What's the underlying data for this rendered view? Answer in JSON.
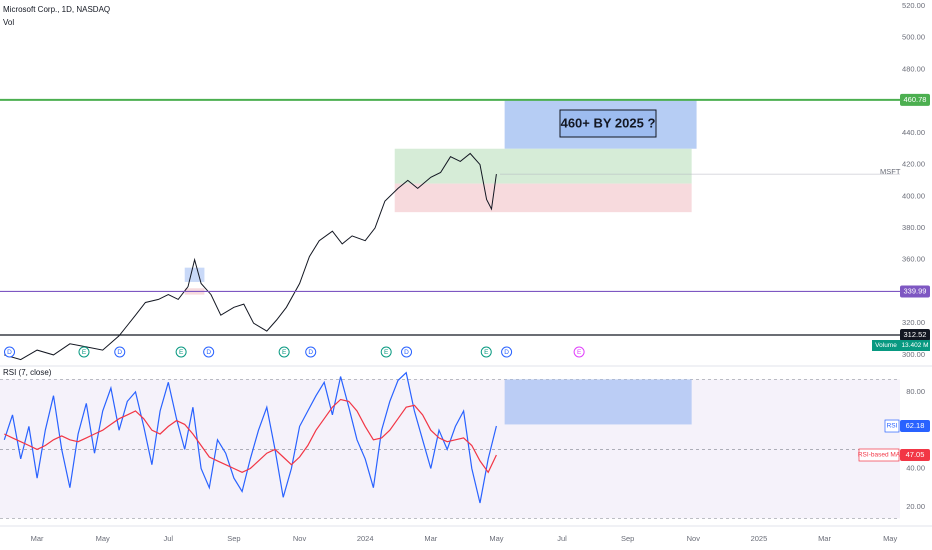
{
  "header": {
    "title": "Microsoft Corp., 1D, NASDAQ",
    "volume_label": "Vol"
  },
  "chart_data": [
    {
      "type": "line",
      "series": [
        {
          "name": "MSFT",
          "color": "#131722",
          "x": [
            1,
            1.5,
            2,
            2.5,
            3,
            3.5,
            4,
            4.5,
            5,
            5.3,
            5.7,
            6,
            6.3,
            6.6,
            6.8,
            7,
            7.3,
            7.6,
            8,
            8.3,
            8.6,
            9,
            9.3,
            9.6,
            10,
            10.3,
            10.6,
            11,
            11.3,
            11.6,
            12,
            12.3,
            12.6,
            13,
            13.3,
            13.6,
            14,
            14.3,
            14.6,
            14.9,
            15.2,
            15.5,
            15.7,
            15.85,
            16
          ],
          "values": [
            300,
            297,
            303,
            300,
            307,
            305,
            303,
            312,
            325,
            333,
            335,
            338,
            335,
            343,
            360,
            345,
            338,
            325,
            330,
            332,
            320,
            315,
            322,
            330,
            345,
            362,
            372,
            378,
            370,
            375,
            372,
            380,
            397,
            405,
            410,
            405,
            412,
            415,
            425,
            422,
            427,
            420,
            398,
            392,
            414
          ]
        }
      ],
      "ylim": [
        295.5,
        523.8
      ],
      "yticks": [
        {
          "value": 520,
          "label": "520.00"
        },
        {
          "value": 500,
          "label": "500.00"
        },
        {
          "value": 480,
          "label": "480.00"
        },
        {
          "value": 440,
          "label": "440.00"
        },
        {
          "value": 420,
          "label": "420.00"
        },
        {
          "value": 400,
          "label": "400.00"
        },
        {
          "value": 380,
          "label": "380.00"
        },
        {
          "value": 360,
          "label": "360.00"
        },
        {
          "value": 320,
          "label": "320.00"
        },
        {
          "value": 300,
          "label": "300.00"
        }
      ],
      "hlines": [
        {
          "value": 460.78,
          "label": "460.78",
          "color": "#4caf50"
        },
        {
          "value": 339.99,
          "label": "339.99",
          "color": "#7e57c2"
        },
        {
          "value": 312.52,
          "label": "312.52",
          "color": "#131722"
        }
      ],
      "boxes": [
        {
          "x": [
            16.25,
            22.1
          ],
          "y": [
            430,
            460.78
          ],
          "color": "#9dbcf0"
        },
        {
          "x": [
            12.9,
            21.95
          ],
          "y": [
            408,
            430
          ],
          "color": "#c8e6c9"
        },
        {
          "x": [
            12.9,
            21.95
          ],
          "y": [
            390,
            408
          ],
          "color": "#f4cdd2"
        },
        {
          "x": [
            6.5,
            7.1
          ],
          "y": [
            346,
            355
          ],
          "color": "#b7ccf5"
        },
        {
          "x": [
            6.5,
            7.1
          ],
          "y": [
            338,
            342
          ],
          "color": "#f4cdd2"
        }
      ],
      "annotation": "460+  BY 2025 ?",
      "events": [
        {
          "x": 1.16,
          "label": "D",
          "color": "#2962ff"
        },
        {
          "x": 3.43,
          "label": "E",
          "color": "#089981"
        },
        {
          "x": 4.52,
          "label": "D",
          "color": "#2962ff"
        },
        {
          "x": 6.39,
          "label": "E",
          "color": "#089981"
        },
        {
          "x": 7.23,
          "label": "D",
          "color": "#2962ff"
        },
        {
          "x": 9.53,
          "label": "E",
          "color": "#089981"
        },
        {
          "x": 10.34,
          "label": "D",
          "color": "#2962ff"
        },
        {
          "x": 12.64,
          "label": "E",
          "color": "#089981"
        },
        {
          "x": 13.26,
          "label": "D",
          "color": "#2962ff"
        },
        {
          "x": 15.69,
          "label": "E",
          "color": "#089981"
        },
        {
          "x": 16.31,
          "label": "D",
          "color": "#2962ff"
        },
        {
          "x": 18.52,
          "label": "E",
          "color": "#e040fb"
        }
      ],
      "volume": {
        "name": "Volume",
        "label": "13.402 M"
      }
    },
    {
      "type": "line",
      "title": "RSI (7, close)",
      "series": [
        {
          "name": "RSI",
          "color": "#2962ff",
          "x": [
            1,
            1.25,
            1.5,
            1.75,
            2,
            2.25,
            2.5,
            2.75,
            3,
            3.25,
            3.5,
            3.75,
            4,
            4.25,
            4.5,
            4.75,
            5,
            5.25,
            5.5,
            5.75,
            6,
            6.25,
            6.5,
            6.75,
            7,
            7.25,
            7.5,
            7.75,
            8,
            8.25,
            8.5,
            8.75,
            9,
            9.25,
            9.5,
            9.75,
            10,
            10.25,
            10.5,
            10.75,
            11,
            11.25,
            11.5,
            11.75,
            12,
            12.25,
            12.5,
            12.75,
            13,
            13.25,
            13.5,
            13.75,
            14,
            14.25,
            14.5,
            14.75,
            15,
            15.25,
            15.5,
            15.75,
            16
          ],
          "values": [
            55,
            68,
            45,
            62,
            35,
            60,
            78,
            50,
            30,
            58,
            74,
            48,
            70,
            82,
            60,
            75,
            80,
            62,
            42,
            70,
            85,
            66,
            50,
            72,
            40,
            30,
            55,
            48,
            35,
            28,
            45,
            60,
            72,
            50,
            25,
            40,
            62,
            70,
            78,
            85,
            68,
            88,
            72,
            55,
            45,
            30,
            60,
            75,
            86,
            90,
            70,
            55,
            40,
            60,
            50,
            62,
            70,
            40,
            22,
            45,
            62.18
          ]
        },
        {
          "name": "RSI-based MA",
          "color": "#f23645",
          "x": [
            1,
            1.25,
            1.5,
            1.75,
            2,
            2.25,
            2.5,
            2.75,
            3,
            3.25,
            3.5,
            3.75,
            4,
            4.25,
            4.5,
            4.75,
            5,
            5.25,
            5.5,
            5.75,
            6,
            6.25,
            6.5,
            6.75,
            7,
            7.25,
            7.5,
            7.75,
            8,
            8.25,
            8.5,
            8.75,
            9,
            9.25,
            9.5,
            9.75,
            10,
            10.25,
            10.5,
            10.75,
            11,
            11.25,
            11.5,
            11.75,
            12,
            12.25,
            12.5,
            12.75,
            13,
            13.25,
            13.5,
            13.75,
            14,
            14.25,
            14.5,
            14.75,
            15,
            15.25,
            15.5,
            15.75,
            16
          ],
          "values": [
            58,
            56,
            54,
            52,
            50,
            52,
            55,
            57,
            55,
            54,
            56,
            58,
            60,
            63,
            66,
            68,
            70,
            66,
            60,
            58,
            62,
            65,
            63,
            58,
            52,
            46,
            44,
            42,
            40,
            38,
            40,
            44,
            48,
            50,
            46,
            42,
            46,
            52,
            60,
            66,
            72,
            76,
            75,
            70,
            62,
            55,
            56,
            60,
            66,
            72,
            73,
            68,
            60,
            56,
            54,
            55,
            56,
            52,
            44,
            38,
            47.05
          ]
        }
      ],
      "ylim": [
        10,
        93.5
      ],
      "yticks": [
        {
          "value": 80,
          "label": "80.00"
        },
        {
          "value": 40,
          "label": "40.00"
        },
        {
          "value": 20,
          "label": "20.00"
        }
      ],
      "bands": [
        86.5,
        50,
        14
      ],
      "boxes": [
        {
          "x": [
            16.25,
            21.95
          ],
          "y": [
            63,
            86.5
          ],
          "color": "#a7c0f3"
        }
      ],
      "xlim": [
        0.87,
        28.3
      ],
      "xticks": [
        {
          "value": 2,
          "label": "Mar"
        },
        {
          "value": 4,
          "label": "May"
        },
        {
          "value": 6,
          "label": "Jul"
        },
        {
          "value": 8,
          "label": "Sep"
        },
        {
          "value": 10,
          "label": "Nov"
        },
        {
          "value": 12,
          "label": "2024"
        },
        {
          "value": 14,
          "label": "Mar"
        },
        {
          "value": 16,
          "label": "May"
        },
        {
          "value": 18,
          "label": "Jul"
        },
        {
          "value": 20,
          "label": "Sep"
        },
        {
          "value": 22,
          "label": "Nov"
        },
        {
          "value": 24,
          "label": "2025"
        },
        {
          "value": 26,
          "label": "Mar"
        },
        {
          "value": 28,
          "label": "May"
        }
      ]
    }
  ]
}
